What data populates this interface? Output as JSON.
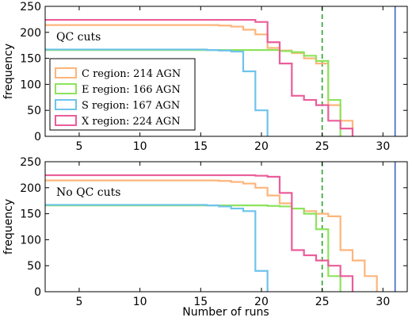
{
  "figure": {
    "xlabel": "Number of runs",
    "ylabel": "frequency"
  },
  "chart_data": [
    {
      "type": "step",
      "annotation": "QC cuts",
      "xlim": [
        2.2,
        32
      ],
      "ylim": [
        0,
        250
      ],
      "xticks": [
        5,
        10,
        15,
        20,
        25,
        30
      ],
      "yticks": [
        0,
        50,
        100,
        150,
        200,
        250
      ],
      "xlabel": "",
      "ylabel": "frequency",
      "legend": {
        "position": "center-left",
        "entries": [
          {
            "label": "C region: 214 AGN",
            "color": "#fdb57a"
          },
          {
            "label": "E region: 166 AGN",
            "color": "#8de35c"
          },
          {
            "label": "S region: 167 AGN",
            "color": "#6ec3ec"
          },
          {
            "label": "X region: 224 AGN",
            "color": "#ea5d9a"
          }
        ]
      },
      "vlines": [
        {
          "x": 25,
          "style": "dashed",
          "color": "#2ca02c"
        },
        {
          "x": 31,
          "style": "solid",
          "color": "#3b63c4"
        }
      ],
      "series": [
        {
          "name": "C region: 214 AGN",
          "color": "#fdb57a",
          "x": [
            2.2,
            16.5,
            17.5,
            18.5,
            19.5,
            20.5,
            21.5,
            22.5,
            23.5,
            24.5,
            25.5,
            26.5,
            27.5
          ],
          "y": [
            214,
            213,
            211,
            205,
            196,
            170,
            165,
            160,
            150,
            140,
            60,
            30,
            0
          ]
        },
        {
          "name": "E region: 166 AGN",
          "color": "#8de35c",
          "x": [
            2.2,
            16.5,
            17.5,
            18.5,
            19.5,
            20.5,
            21.5,
            22.5,
            23.5,
            24.5,
            25.5,
            26.5
          ],
          "y": [
            166,
            166,
            166,
            166,
            166,
            166,
            164,
            162,
            155,
            145,
            70,
            0
          ]
        },
        {
          "name": "S region: 167 AGN",
          "color": "#6ec3ec",
          "x": [
            2.2,
            15.5,
            16.5,
            17.5,
            18.5,
            19.5,
            20.5
          ],
          "y": [
            167,
            166,
            165,
            163,
            125,
            50,
            0
          ]
        },
        {
          "name": "X region: 224 AGN",
          "color": "#ea5d9a",
          "x": [
            2.2,
            16.5,
            17.5,
            18.5,
            19.5,
            20.5,
            21.5,
            22.5,
            23.5,
            24.5,
            25.5,
            26.5,
            27.5
          ],
          "y": [
            224,
            224,
            224,
            224,
            220,
            181,
            140,
            78,
            70,
            60,
            30,
            15,
            0
          ]
        }
      ]
    },
    {
      "type": "step",
      "annotation": "No QC cuts",
      "xlim": [
        2.2,
        32
      ],
      "ylim": [
        0,
        250
      ],
      "xticks": [
        5,
        10,
        15,
        20,
        25,
        30
      ],
      "yticks": [
        0,
        50,
        100,
        150,
        200,
        250
      ],
      "xlabel": "Number of runs",
      "ylabel": "frequency",
      "vlines": [
        {
          "x": 25,
          "style": "dashed",
          "color": "#2ca02c"
        },
        {
          "x": 31,
          "style": "solid",
          "color": "#3b63c4"
        }
      ],
      "series": [
        {
          "name": "C region: 214 AGN",
          "color": "#fdb57a",
          "x": [
            2.2,
            16.5,
            17.5,
            18.5,
            19.5,
            20.5,
            21.5,
            22.5,
            23.5,
            24.5,
            25.5,
            26.5,
            27.5,
            28.5,
            29.5
          ],
          "y": [
            214,
            213,
            211,
            208,
            200,
            185,
            170,
            160,
            155,
            150,
            145,
            80,
            60,
            30,
            0
          ]
        },
        {
          "name": "E region: 166 AGN",
          "color": "#8de35c",
          "x": [
            2.2,
            16.5,
            17.5,
            18.5,
            19.5,
            20.5,
            21.5,
            22.5,
            23.5,
            24.5,
            25.5,
            26.5
          ],
          "y": [
            166,
            166,
            166,
            166,
            166,
            165,
            164,
            160,
            150,
            120,
            30,
            0
          ]
        },
        {
          "name": "S region: 167 AGN",
          "color": "#6ec3ec",
          "x": [
            2.2,
            15.5,
            16.5,
            17.5,
            18.5,
            19.5,
            20.5
          ],
          "y": [
            167,
            166,
            164,
            160,
            155,
            40,
            0
          ]
        },
        {
          "name": "X region: 224 AGN",
          "color": "#ea5d9a",
          "x": [
            2.2,
            16.5,
            17.5,
            18.5,
            19.5,
            20.5,
            21.5,
            22.5,
            23.5,
            24.5,
            25.5,
            26.5,
            27.5
          ],
          "y": [
            224,
            224,
            224,
            224,
            223,
            221,
            190,
            80,
            70,
            60,
            50,
            30,
            0
          ]
        }
      ]
    }
  ]
}
